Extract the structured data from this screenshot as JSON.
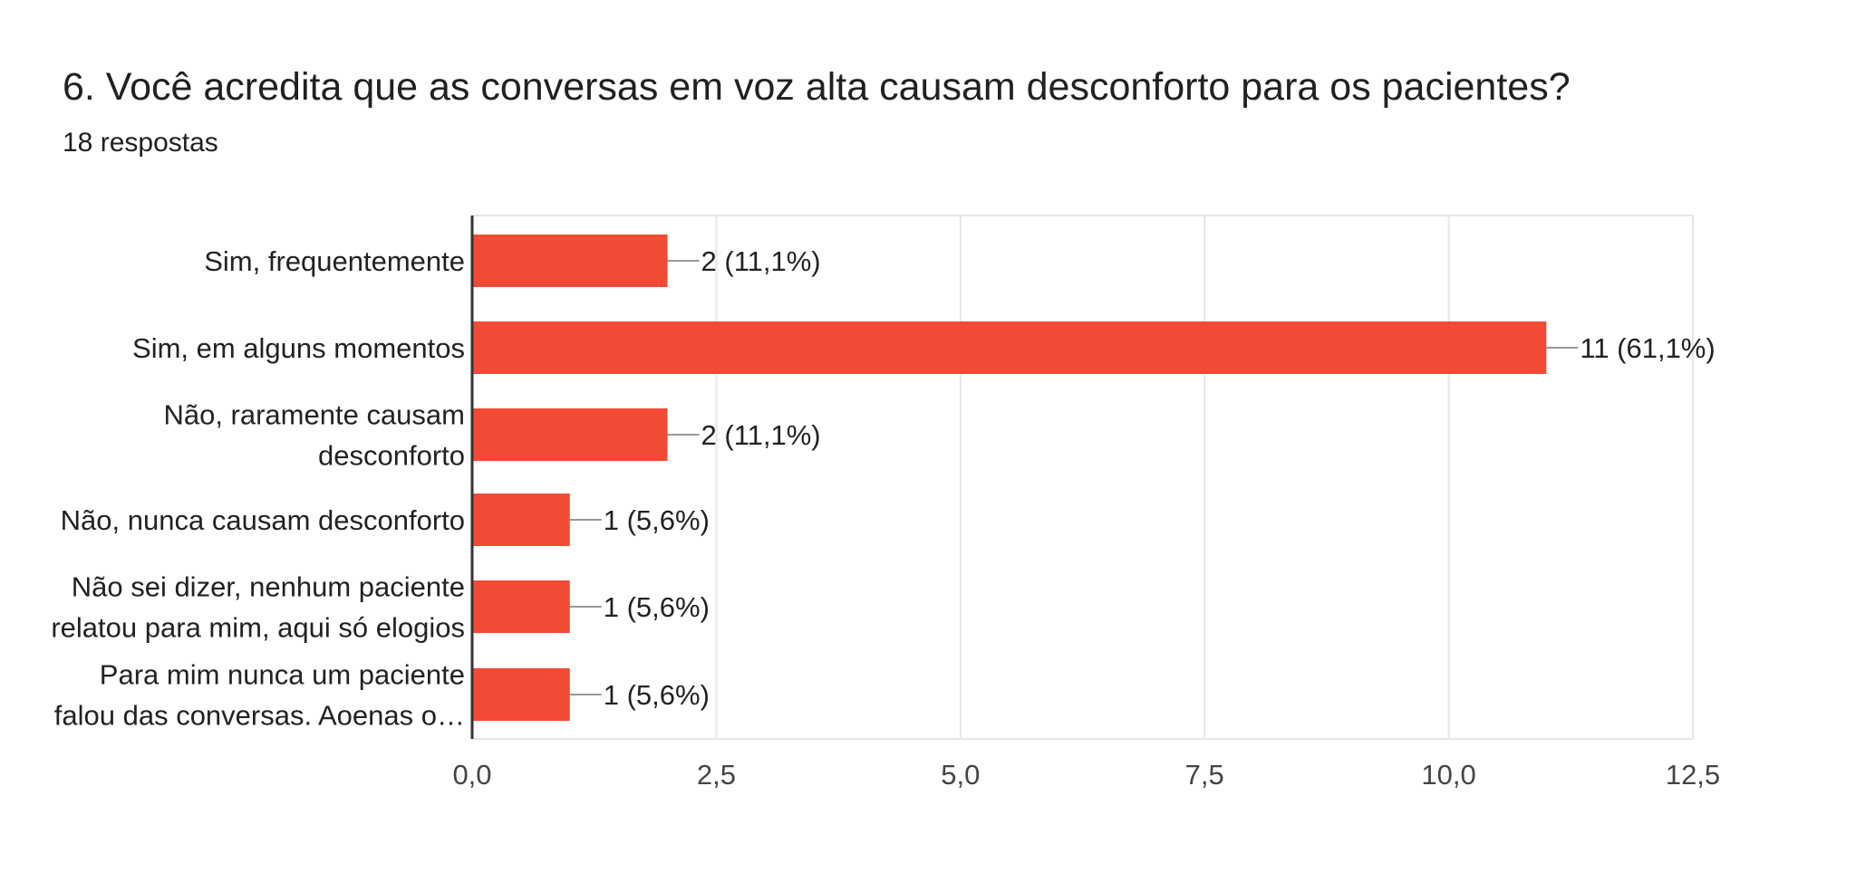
{
  "question": {
    "title": "6. Você acredita que as conversas em voz alta causam desconforto para os pacientes?",
    "responses": "18 respostas"
  },
  "colors": {
    "bar": "#f24a34",
    "gridline": "#e6e6e6",
    "axis": "#333333",
    "leader": "#999999"
  },
  "chart_data": {
    "type": "bar",
    "orientation": "horizontal",
    "categories": [
      [
        "Sim, frequentemente"
      ],
      [
        "Sim, em alguns momentos"
      ],
      [
        "Não, raramente causam",
        "desconforto"
      ],
      [
        "Não, nunca causam desconforto"
      ],
      [
        "Não sei dizer, nenhum paciente",
        "relatou para mim, aqui só elogios"
      ],
      [
        "Para mim nunca um paciente",
        "falou das conversas. Aoenas o…"
      ]
    ],
    "values": [
      2,
      11,
      2,
      1,
      1,
      1
    ],
    "data_labels": [
      "2 (11,1%)",
      "11 (61,1%)",
      "2 (11,1%)",
      "1 (5,6%)",
      "1 (5,6%)",
      "1 (5,6%)"
    ],
    "xlim": [
      0,
      12.5
    ],
    "ticks": [
      0,
      2.5,
      5,
      7.5,
      10,
      12.5
    ],
    "tick_labels": [
      "0,0",
      "2,5",
      "5,0",
      "7,5",
      "10,0",
      "12,5"
    ],
    "grid": true
  }
}
